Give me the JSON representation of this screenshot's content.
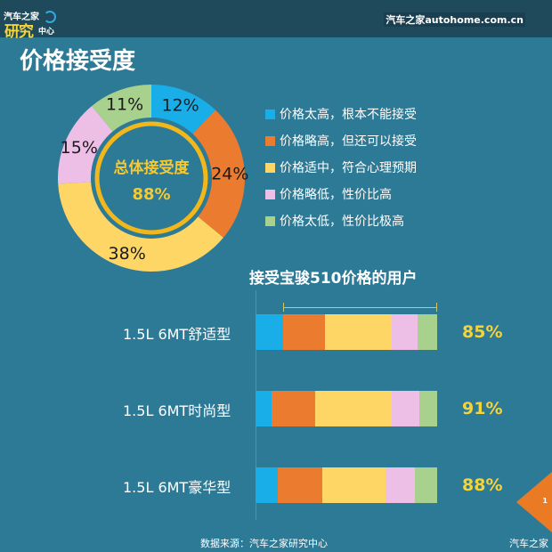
{
  "header": {
    "logo_line1": "汽车之家",
    "logo_line2": "研究",
    "logo_line3": "中心",
    "site": "汽车之家autohome.com.cn"
  },
  "title": "价格接受度",
  "donut": {
    "center_label": "总体接受度",
    "center_value": "88%"
  },
  "legend": [
    {
      "label": "价格太高，根本不能接受",
      "color": "#1aaee8"
    },
    {
      "label": "价格略高，但还可以接受",
      "color": "#ea7b2f"
    },
    {
      "label": "价格适中，符合心理预期",
      "color": "#fdd666"
    },
    {
      "label": "价格略低，性价比高",
      "color": "#eebfe6"
    },
    {
      "label": "价格太低，性价比极高",
      "color": "#a9d18e"
    }
  ],
  "bars_title": "接受宝骏510价格的用户",
  "footer": {
    "source": "数据来源：汽车之家研究中心",
    "brand": "汽车之家",
    "page": "1"
  },
  "chart_data": [
    {
      "type": "pie",
      "title": "总体接受度 88%",
      "categories": [
        "价格太高，根本不能接受",
        "价格略高，但还可以接受",
        "价格适中，符合心理预期",
        "价格略低，性价比高",
        "价格太低，性价比极高"
      ],
      "values": [
        12,
        24,
        38,
        15,
        11
      ],
      "labels": [
        "12%",
        "24%",
        "38%",
        "15%",
        "11%"
      ],
      "colors": [
        "#1aaee8",
        "#ea7b2f",
        "#fdd666",
        "#eebfe6",
        "#a9d18e"
      ],
      "donut": true,
      "legend_position": "right"
    },
    {
      "type": "bar",
      "stacked": true,
      "orientation": "horizontal",
      "title": "接受宝骏510价格的用户",
      "categories": [
        "1.5L 6MT舒适型",
        "1.5L 6MT时尚型",
        "1.5L 6MT豪华型"
      ],
      "series": [
        {
          "name": "价格太高，根本不能接受",
          "values": [
            15,
            9,
            12
          ],
          "color": "#1aaee8"
        },
        {
          "name": "价格略高，但还可以接受",
          "values": [
            23,
            24,
            24
          ],
          "color": "#ea7b2f"
        },
        {
          "name": "价格适中，符合心理预期",
          "values": [
            37,
            42,
            34
          ],
          "color": "#fdd666"
        },
        {
          "name": "价格略低，性价比高",
          "values": [
            14,
            15,
            16
          ],
          "color": "#eebfe6"
        },
        {
          "name": "价格太低，性价比极高",
          "values": [
            11,
            10,
            12
          ],
          "color": "#a9d18e"
        }
      ],
      "annotations": [
        "85%",
        "91%",
        "88%"
      ]
    }
  ]
}
